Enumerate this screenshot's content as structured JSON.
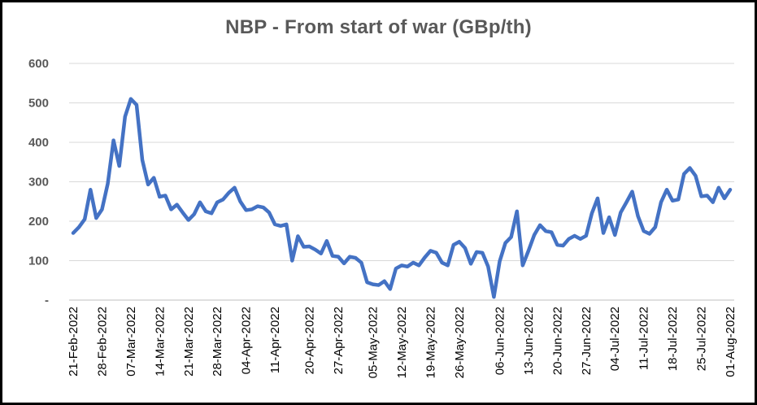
{
  "chart_data": {
    "type": "line",
    "title": "NBP - From start of war (GBp/th)",
    "xlabel": "",
    "ylabel": "",
    "ylim": [
      0,
      600
    ],
    "y_ticks": [
      {
        "value": 0,
        "label": "-"
      },
      {
        "value": 100,
        "label": "100"
      },
      {
        "value": 200,
        "label": "200"
      },
      {
        "value": 300,
        "label": "300"
      },
      {
        "value": 400,
        "label": "400"
      },
      {
        "value": 500,
        "label": "500"
      },
      {
        "value": 600,
        "label": "600"
      }
    ],
    "x_tick_labels": [
      "21-Feb-2022",
      "28-Feb-2022",
      "07-Mar-2022",
      "14-Mar-2022",
      "21-Mar-2022",
      "28-Mar-2022",
      "04-Apr-2022",
      "11-Apr-2022",
      "20-Apr-2022",
      "27-Apr-2022",
      "05-May-2022",
      "12-May-2022",
      "19-May-2022",
      "26-May-2022",
      "06-Jun-2022",
      "13-Jun-2022",
      "20-Jun-2022",
      "27-Jun-2022",
      "04-Jul-2022",
      "11-Jul-2022",
      "18-Jul-2022",
      "25-Jul-2022",
      "01-Aug-2022"
    ],
    "x_tick_positions": [
      0,
      5,
      10,
      15,
      20,
      25,
      30,
      35,
      41,
      46,
      52,
      57,
      62,
      67,
      74,
      79,
      84,
      89,
      94,
      99,
      104,
      109,
      114
    ],
    "grid": true,
    "color": "#4472C4",
    "series": [
      {
        "values": [
          170,
          185,
          205,
          280,
          208,
          230,
          295,
          405,
          340,
          465,
          510,
          495,
          355,
          293,
          310,
          262,
          265,
          230,
          242,
          222,
          203,
          218,
          248,
          225,
          220,
          248,
          255,
          272,
          285,
          250,
          228,
          230,
          238,
          235,
          222,
          192,
          188,
          192,
          100,
          162,
          135,
          136,
          128,
          118,
          150,
          112,
          110,
          93,
          110,
          107,
          95,
          45,
          40,
          38,
          48,
          28,
          80,
          88,
          85,
          95,
          88,
          108,
          125,
          120,
          95,
          88,
          140,
          148,
          132,
          92,
          122,
          120,
          85,
          8,
          98,
          145,
          160,
          225,
          88,
          125,
          165,
          190,
          175,
          172,
          140,
          138,
          155,
          163,
          155,
          163,
          220,
          258,
          170,
          210,
          165,
          222,
          248,
          275,
          213,
          175,
          168,
          185,
          248,
          280,
          252,
          255,
          320,
          335,
          315,
          263,
          265,
          248,
          285,
          258,
          280
        ]
      }
    ]
  }
}
